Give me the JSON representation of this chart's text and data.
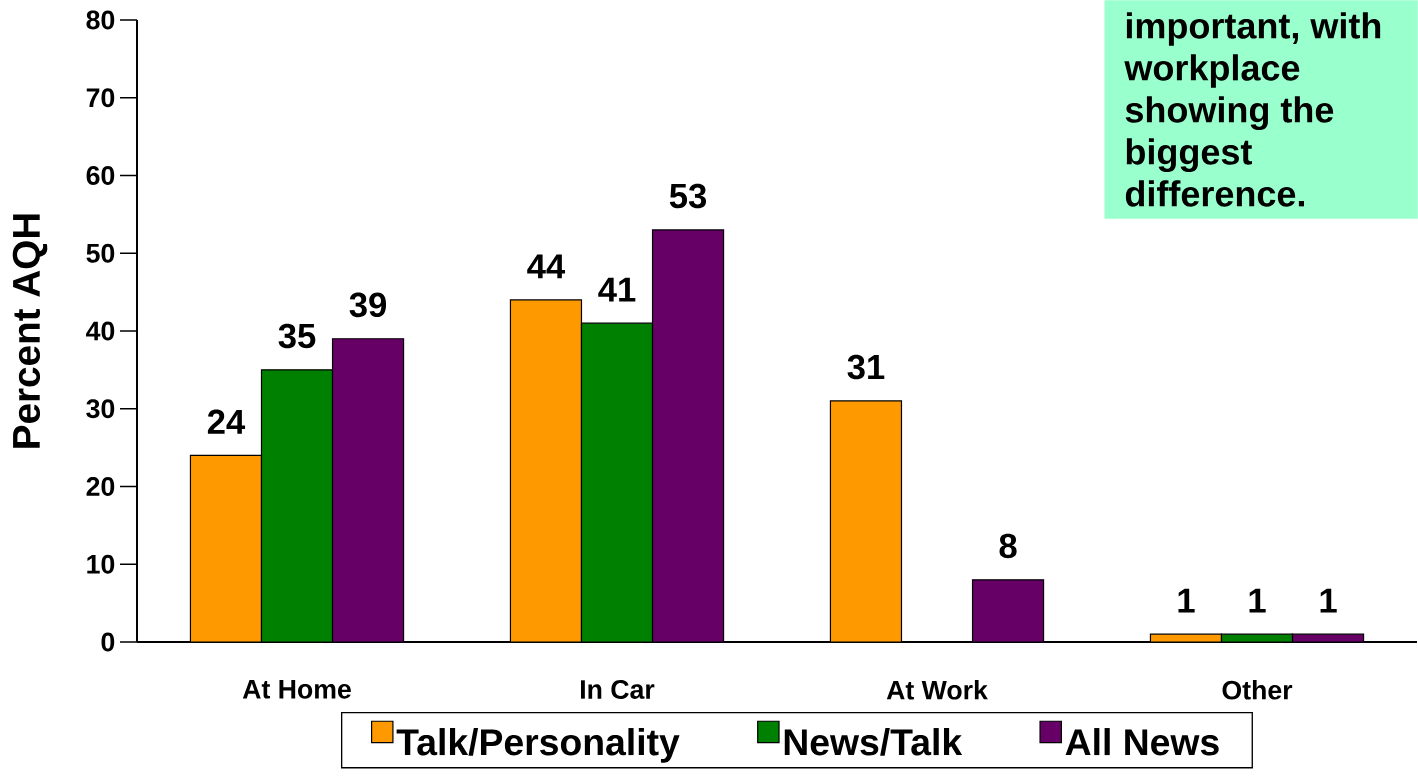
{
  "chart_data": {
    "type": "bar",
    "categories": [
      "At Home",
      "In Car",
      "At Work",
      "Other"
    ],
    "series": [
      {
        "name": "Talk/Personality",
        "color": "#ff9900",
        "values": [
          24,
          44,
          31,
          1
        ]
      },
      {
        "name": "News/Talk",
        "color": "#008000",
        "values": [
          35,
          41,
          null,
          1
        ]
      },
      {
        "name": "All News",
        "color": "#660066",
        "values": [
          39,
          53,
          8,
          1
        ]
      }
    ],
    "ylabel": "Percent AQH",
    "ylim": [
      0,
      80
    ],
    "yticks": [
      0,
      10,
      20,
      30,
      40,
      50,
      60,
      70,
      80
    ],
    "data_labels": true,
    "legend": "bottom",
    "annotations": [
      "important, with workplace showing the biggest difference."
    ]
  }
}
